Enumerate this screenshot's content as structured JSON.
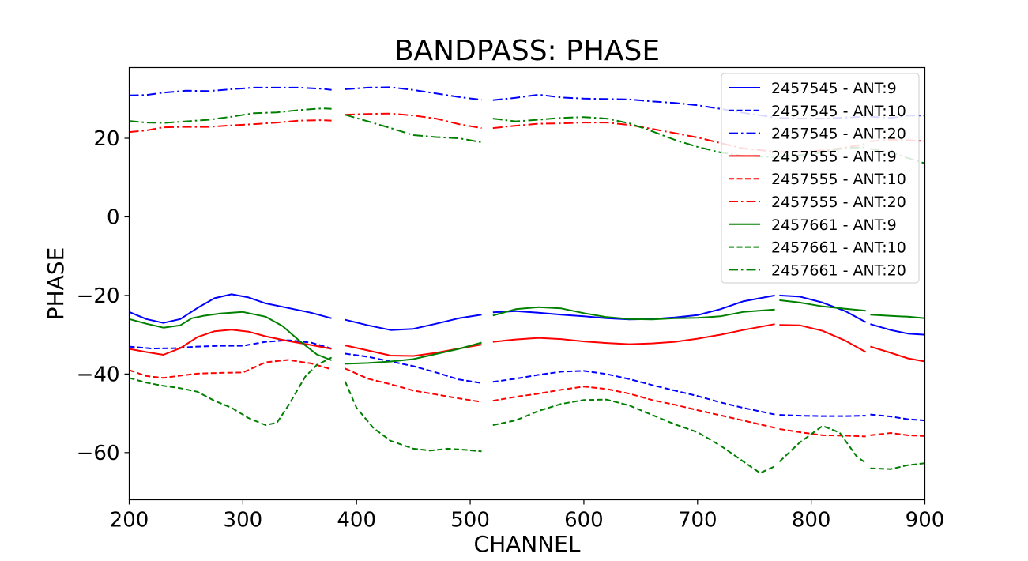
{
  "chart_data": {
    "type": "line",
    "title": "BANDPASS: PHASE",
    "xlabel": "CHANNEL",
    "ylabel": "PHASE",
    "xlim": [
      200,
      900
    ],
    "ylim": [
      -72,
      38
    ],
    "xticks": [
      200,
      300,
      400,
      500,
      600,
      700,
      800,
      900
    ],
    "xtick_labels": [
      "200",
      "300",
      "400",
      "500",
      "600",
      "700",
      "800",
      "900"
    ],
    "yticks": [
      20,
      0,
      -20,
      -40,
      -60
    ],
    "ytick_labels": [
      "20",
      "0",
      "−20",
      "−40",
      "−60"
    ],
    "grid": false,
    "legend_position": "top-right",
    "gaps": [
      [
        378,
        390
      ],
      [
        510,
        520
      ],
      [
        768,
        772
      ],
      [
        848,
        852
      ]
    ],
    "series": [
      {
        "name": "2457545 - ANT:9",
        "color": "#0000ff",
        "linestyle": "solid",
        "x": [
          200,
          215,
          230,
          245,
          260,
          275,
          290,
          305,
          320,
          340,
          360,
          378,
          390,
          410,
          430,
          450,
          470,
          490,
          510,
          520,
          540,
          560,
          580,
          600,
          620,
          640,
          660,
          680,
          700,
          720,
          740,
          768,
          772,
          790,
          810,
          830,
          848,
          852,
          870,
          885,
          900
        ],
        "y": [
          -24.2,
          -26,
          -27,
          -26,
          -23.2,
          -20.7,
          -19.7,
          -20.5,
          -22,
          -23.2,
          -24.4,
          -25.8,
          -26.2,
          -27.6,
          -28.8,
          -28.5,
          -27.2,
          -25.8,
          -24.9,
          -24.3,
          -24,
          -24.4,
          -24.9,
          -25.3,
          -25.8,
          -26.1,
          -26,
          -25.6,
          -25,
          -23.5,
          -21.5,
          -20,
          -20,
          -20.3,
          -21.8,
          -24,
          -26.8,
          -27.3,
          -28.8,
          -29.7,
          -30
        ]
      },
      {
        "name": "2457545 - ANT:10",
        "color": "#0000ff",
        "linestyle": "dashed",
        "x": [
          200,
          220,
          240,
          260,
          280,
          300,
          320,
          340,
          360,
          378,
          390,
          410,
          430,
          450,
          470,
          490,
          510,
          520,
          540,
          560,
          580,
          600,
          620,
          640,
          660,
          680,
          700,
          720,
          740,
          768,
          772,
          790,
          810,
          830,
          848,
          852,
          870,
          885,
          900
        ],
        "y": [
          -33,
          -33.5,
          -33.4,
          -33,
          -32.8,
          -32.8,
          -31.8,
          -31.4,
          -32,
          -33.5,
          -34.8,
          -35.6,
          -36.8,
          -38,
          -39.6,
          -41.4,
          -42.3,
          -42,
          -41.2,
          -40.2,
          -39.4,
          -39.2,
          -40,
          -41.3,
          -42.8,
          -44.2,
          -45.6,
          -47.2,
          -48.6,
          -50.3,
          -50.4,
          -50.6,
          -50.7,
          -50.7,
          -50.6,
          -50.3,
          -50.8,
          -51.5,
          -51.8
        ]
      },
      {
        "name": "2457545 - ANT:20",
        "color": "#0000ff",
        "linestyle": "dashdot",
        "x": [
          200,
          215,
          230,
          250,
          270,
          290,
          310,
          330,
          350,
          370,
          378,
          390,
          410,
          430,
          450,
          470,
          490,
          510,
          520,
          540,
          560,
          580,
          600,
          620,
          640,
          660,
          680,
          700,
          720,
          740,
          768,
          772,
          790,
          810,
          830,
          848,
          852,
          870,
          885,
          900
        ],
        "y": [
          30.9,
          31,
          31.6,
          32.1,
          32,
          32.5,
          32.9,
          32.9,
          32.9,
          32.6,
          32.3,
          32.5,
          32.9,
          33,
          32.3,
          31.4,
          30.5,
          29.8,
          29.7,
          30.3,
          31.1,
          30.4,
          30.1,
          30,
          29.9,
          29.4,
          29,
          28.4,
          27.5,
          26.5,
          25.3,
          25.2,
          25,
          25,
          25.3,
          25.5,
          25.5,
          25.2,
          25.8,
          25.8
        ]
      },
      {
        "name": "2457555 - ANT:9",
        "color": "#ff0000",
        "linestyle": "solid",
        "x": [
          200,
          215,
          230,
          245,
          260,
          275,
          290,
          305,
          320,
          340,
          360,
          378,
          390,
          410,
          430,
          450,
          470,
          490,
          510,
          520,
          540,
          560,
          580,
          600,
          620,
          640,
          660,
          680,
          700,
          720,
          740,
          768,
          772,
          790,
          810,
          830,
          848,
          852,
          870,
          885,
          900
        ],
        "y": [
          -33.6,
          -34.4,
          -35.1,
          -33.4,
          -30.6,
          -29.1,
          -28.7,
          -29.2,
          -30.4,
          -31.6,
          -32.6,
          -33.6,
          -32.7,
          -34,
          -35.3,
          -35.4,
          -34.6,
          -33.5,
          -32.5,
          -31.8,
          -31.2,
          -30.8,
          -31.1,
          -31.7,
          -32.1,
          -32.4,
          -32.2,
          -31.8,
          -31,
          -30,
          -28.8,
          -27.3,
          -27.5,
          -27.6,
          -29,
          -31.5,
          -34.4,
          -33,
          -34.6,
          -36,
          -36.8
        ]
      },
      {
        "name": "2457555 - ANT:10",
        "color": "#ff0000",
        "linestyle": "dashed",
        "x": [
          200,
          215,
          230,
          245,
          260,
          280,
          300,
          320,
          340,
          360,
          378,
          390,
          410,
          430,
          450,
          470,
          490,
          510,
          520,
          540,
          560,
          580,
          600,
          620,
          640,
          660,
          680,
          700,
          720,
          740,
          768,
          772,
          790,
          810,
          830,
          848,
          852,
          870,
          885,
          900
        ],
        "y": [
          -39,
          -40.5,
          -41,
          -40.4,
          -39.9,
          -39.7,
          -39.6,
          -37,
          -36.4,
          -37.3,
          -38.8,
          -38.6,
          -41.2,
          -42.6,
          -44.2,
          -45.2,
          -46.2,
          -47.1,
          -46.8,
          -45.8,
          -45,
          -44,
          -43.2,
          -43.8,
          -45,
          -46.6,
          -47.8,
          -49.2,
          -50.5,
          -51.8,
          -53.7,
          -54,
          -54.8,
          -55.6,
          -55.7,
          -55.9,
          -55.6,
          -55,
          -55.6,
          -55.8
        ]
      },
      {
        "name": "2457555 - ANT:20",
        "color": "#ff0000",
        "linestyle": "dashdot",
        "x": [
          200,
          215,
          230,
          250,
          270,
          290,
          310,
          330,
          350,
          370,
          378,
          390,
          410,
          430,
          450,
          470,
          490,
          510,
          520,
          540,
          560,
          580,
          600,
          620,
          640,
          660,
          680,
          700,
          720,
          740,
          768,
          772,
          790,
          810,
          830,
          848,
          852,
          870,
          885,
          900
        ],
        "y": [
          21.6,
          22,
          22.8,
          22.9,
          22.9,
          23.3,
          23.6,
          24,
          24.5,
          24.6,
          24.5,
          26,
          26.2,
          26.3,
          25.8,
          25,
          23.6,
          22.6,
          22.6,
          23.2,
          23.7,
          23.8,
          24,
          24,
          23.4,
          22.4,
          21.3,
          20.2,
          18.8,
          17.4,
          16.6,
          16.5,
          16.5,
          16.9,
          17.6,
          18.6,
          19.2,
          19.7,
          19.5,
          19.3
        ]
      },
      {
        "name": "2457661 - ANT:9",
        "color": "#008000",
        "linestyle": "solid",
        "x": [
          200,
          215,
          230,
          245,
          255,
          265,
          280,
          300,
          320,
          335,
          350,
          365,
          378,
          390,
          410,
          430,
          450,
          470,
          490,
          510,
          520,
          540,
          560,
          580,
          600,
          620,
          640,
          660,
          680,
          700,
          720,
          740,
          768,
          772,
          790,
          810,
          830,
          848,
          852,
          870,
          885,
          900
        ],
        "y": [
          -26,
          -27.2,
          -28.2,
          -27.6,
          -25.8,
          -25.2,
          -24.6,
          -24.2,
          -25.4,
          -27.8,
          -31.6,
          -35,
          -36.5,
          -37.4,
          -37.2,
          -36.8,
          -36.2,
          -34.9,
          -33.6,
          -32,
          -25.1,
          -23.5,
          -23,
          -23.3,
          -24.5,
          -25.5,
          -26,
          -26.1,
          -25.8,
          -25.7,
          -25.3,
          -24.2,
          -23.6,
          -21.2,
          -21.8,
          -22.8,
          -23.4,
          -23.9,
          -24.9,
          -25.2,
          -25.4,
          -25.8
        ]
      },
      {
        "name": "2457661 - ANT:10",
        "color": "#008000",
        "linestyle": "dashed",
        "x": [
          200,
          215,
          230,
          245,
          260,
          275,
          290,
          305,
          320,
          330,
          340,
          355,
          365,
          378,
          390,
          400,
          415,
          430,
          450,
          465,
          480,
          495,
          510,
          520,
          540,
          560,
          580,
          600,
          620,
          640,
          660,
          680,
          700,
          720,
          740,
          755,
          768,
          772,
          790,
          810,
          825,
          840,
          848,
          852,
          870,
          885,
          900
        ],
        "y": [
          -41,
          -42.2,
          -43,
          -43.6,
          -44.5,
          -46.8,
          -48.6,
          -51.2,
          -53,
          -52.4,
          -48,
          -40.6,
          -37.7,
          -35.8,
          -41.9,
          -48.6,
          -53.8,
          -57,
          -59,
          -59.5,
          -59,
          -59.3,
          -59.7,
          -53,
          -51.8,
          -49.4,
          -47.6,
          -46.6,
          -46.5,
          -48,
          -50.4,
          -52.8,
          -54.8,
          -58.2,
          -62.2,
          -65.2,
          -63.5,
          -62.3,
          -57.4,
          -53.2,
          -54.9,
          -61,
          -62.6,
          -64,
          -64.2,
          -63.2,
          -62.7
        ]
      },
      {
        "name": "2457661 - ANT:20",
        "color": "#008000",
        "linestyle": "dashdot",
        "x": [
          200,
          215,
          230,
          250,
          270,
          290,
          310,
          330,
          350,
          370,
          378,
          390,
          410,
          430,
          450,
          470,
          490,
          510,
          520,
          540,
          560,
          580,
          600,
          620,
          640,
          660,
          680,
          700,
          720,
          740,
          768,
          772,
          790,
          810,
          830,
          848,
          852,
          870,
          885,
          900
        ],
        "y": [
          24.4,
          24,
          23.9,
          24.3,
          24.7,
          25.5,
          26.4,
          26.6,
          27.2,
          27.6,
          27.5,
          26,
          24.3,
          22.6,
          20.8,
          20.3,
          20,
          19,
          25,
          24.3,
          24.7,
          25.2,
          25.4,
          25,
          23.8,
          21.8,
          19.6,
          17.8,
          16.4,
          15.5,
          15.2,
          15.3,
          15.7,
          16.4,
          17.5,
          17.7,
          17.3,
          16.4,
          15,
          13.6
        ]
      }
    ]
  }
}
